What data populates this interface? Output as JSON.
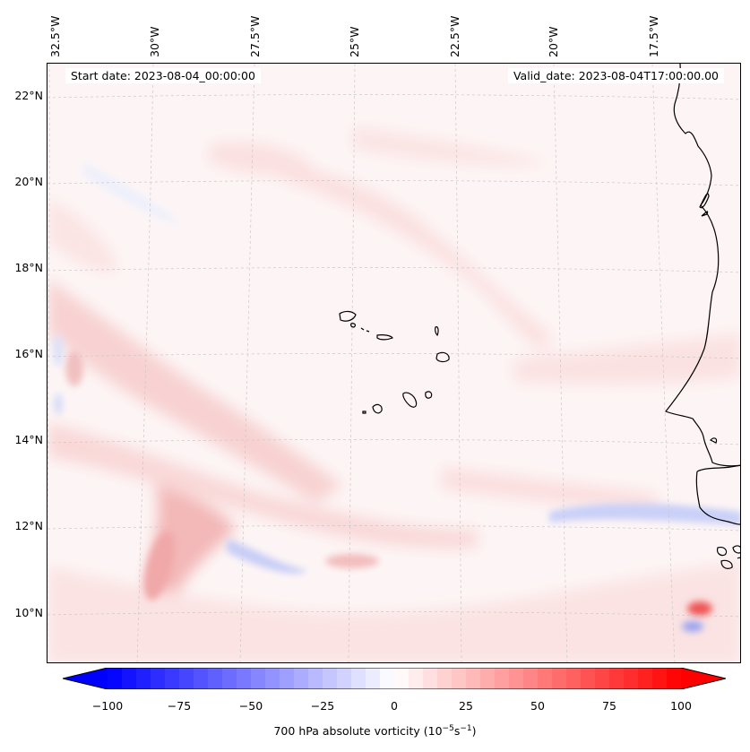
{
  "map": {
    "start_label": "Start date: 2023-08-04_00:00:00",
    "valid_label": "Valid_date: 2023-08-04T17:00:00.00",
    "lon_labels": [
      "32.5°W",
      "30°W",
      "27.5°W",
      "25°W",
      "22.5°W",
      "20°W",
      "17.5°W"
    ],
    "lat_labels": [
      "22°N",
      "20°N",
      "18°N",
      "16°N",
      "14°N",
      "12°N",
      "10°N"
    ],
    "features": [
      {
        "name": "cape-verde-islands",
        "label": "Cape Verde Islands"
      },
      {
        "name": "west-africa-coastline",
        "label": "West African coastline"
      }
    ]
  },
  "colorbar": {
    "variable": "700 hPa absolute vorticity",
    "units": "10^-5 s^-1",
    "label_prefix": "700 hPa absolute vorticity (10",
    "label_exp1": "−5",
    "label_mid": "s",
    "label_exp2": "−1",
    "label_suffix": ")",
    "min": -100,
    "max": 100,
    "step": 5,
    "extend": "both",
    "ticks": [
      "−100",
      "−75",
      "−50",
      "−25",
      "0",
      "25",
      "50",
      "75",
      "100"
    ],
    "tick_values": [
      -100,
      -75,
      -50,
      -25,
      0,
      25,
      50,
      75,
      100
    ],
    "colormap": "bwr",
    "low_color": "#0000ff",
    "mid_color": "#ffffff",
    "high_color": "#ff0000"
  }
}
